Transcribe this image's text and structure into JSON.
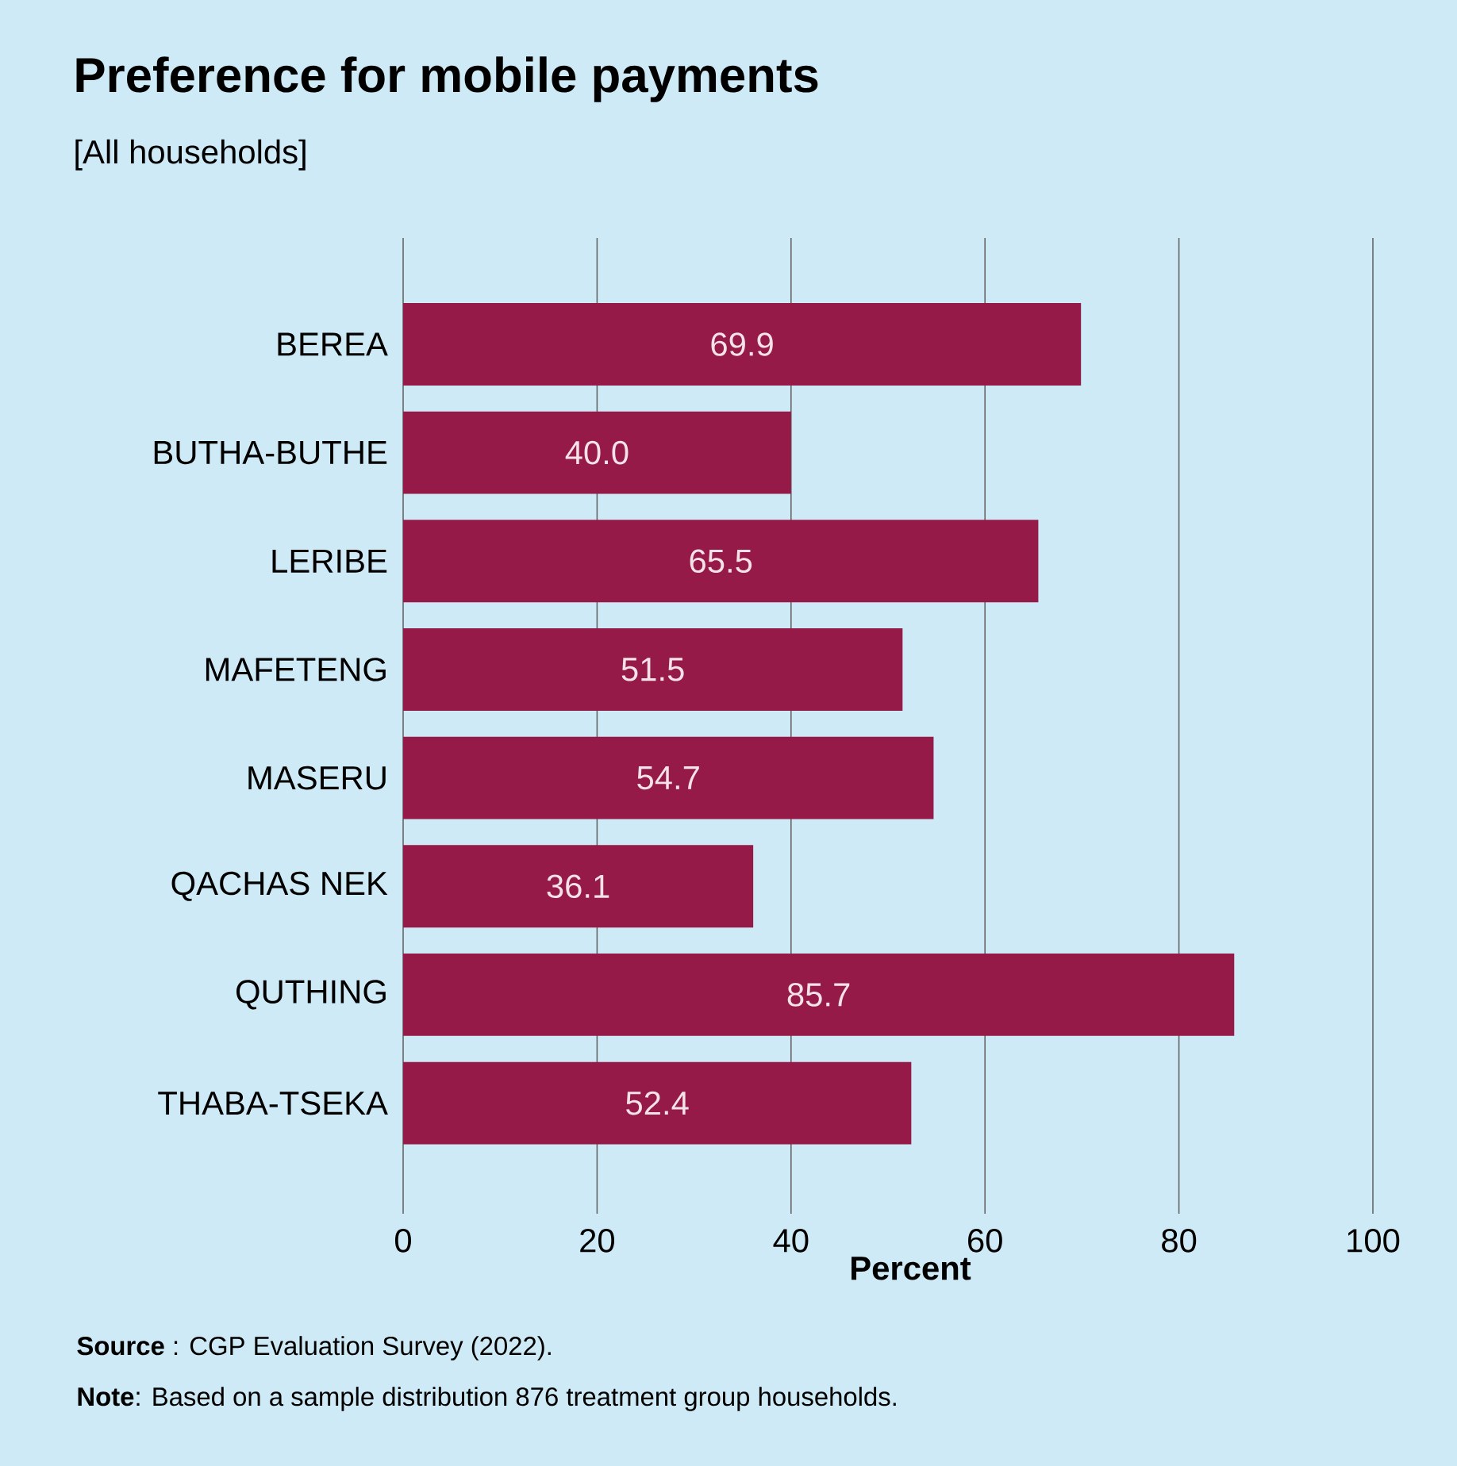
{
  "chart_data": {
    "type": "bar",
    "orientation": "horizontal",
    "title": "Preference for mobile payments",
    "subtitle": "[All households]",
    "xlabel": "Percent",
    "categories": [
      "BEREA",
      "BUTHA-BUTHE",
      "LERIBE",
      "MAFETENG",
      "MASERU",
      "QACHAS NEK",
      "QUTHING",
      "THABA-TSEKA"
    ],
    "values": [
      69.9,
      40.0,
      65.5,
      51.5,
      54.7,
      36.1,
      85.7,
      52.4
    ],
    "value_labels": [
      "69.9",
      "40.0",
      "65.5",
      "51.5",
      "54.7",
      "36.1",
      "85.7",
      "52.4"
    ],
    "color": "#961a47",
    "xlim": [
      0,
      100
    ],
    "xticks": [
      0,
      20,
      40,
      60,
      80,
      100
    ],
    "grid": "x",
    "annotations": [
      "**Source** : CGP Evaluation Survey (2022).",
      "**Note**: Based on a sample distribution 876 treatment group households."
    ]
  }
}
